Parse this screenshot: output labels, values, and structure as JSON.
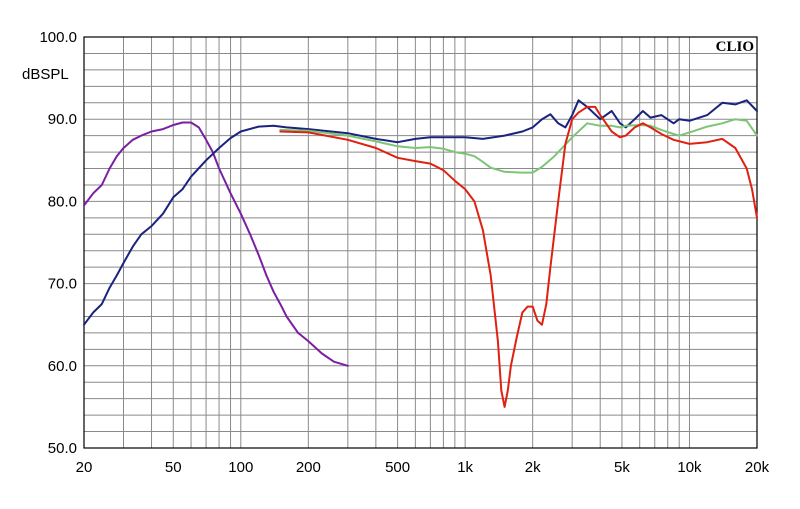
{
  "chart_data": {
    "type": "line",
    "brand": "CLIO",
    "ylabel": "dBSPL",
    "xscale": "log",
    "xlim": [
      20,
      20000
    ],
    "ylim": [
      50,
      100
    ],
    "grid": true,
    "yticks": [
      {
        "v": 100,
        "label": "100.0"
      },
      {
        "v": 90,
        "label": "90.0"
      },
      {
        "v": 80,
        "label": "80.0"
      },
      {
        "v": 70,
        "label": "70.0"
      },
      {
        "v": 60,
        "label": "60.0"
      },
      {
        "v": 50,
        "label": "50.0"
      }
    ],
    "xticks": [
      {
        "v": 20,
        "label": "20"
      },
      {
        "v": 50,
        "label": "50"
      },
      {
        "v": 100,
        "label": "100"
      },
      {
        "v": 200,
        "label": "200"
      },
      {
        "v": 500,
        "label": "500"
      },
      {
        "v": 1000,
        "label": "1k"
      },
      {
        "v": 2000,
        "label": "2k"
      },
      {
        "v": 5000,
        "label": "5k"
      },
      {
        "v": 10000,
        "label": "10k"
      },
      {
        "v": 20000,
        "label": "20k"
      }
    ],
    "series": [
      {
        "color": "#7b1fa2",
        "points": [
          [
            20,
            79.5
          ],
          [
            22,
            81
          ],
          [
            24,
            82
          ],
          [
            26,
            84
          ],
          [
            28,
            85.5
          ],
          [
            30,
            86.5
          ],
          [
            33,
            87.5
          ],
          [
            36,
            88
          ],
          [
            40,
            88.5
          ],
          [
            45,
            88.8
          ],
          [
            50,
            89.3
          ],
          [
            55,
            89.6
          ],
          [
            60,
            89.6
          ],
          [
            65,
            89
          ],
          [
            70,
            87.5
          ],
          [
            75,
            86
          ],
          [
            80,
            84
          ],
          [
            90,
            81
          ],
          [
            100,
            78.5
          ],
          [
            110,
            76
          ],
          [
            120,
            73.5
          ],
          [
            130,
            71
          ],
          [
            140,
            69
          ],
          [
            150,
            67.5
          ],
          [
            160,
            66
          ],
          [
            180,
            64
          ],
          [
            200,
            63
          ],
          [
            230,
            61.5
          ],
          [
            260,
            60.5
          ],
          [
            300,
            60
          ]
        ]
      },
      {
        "color": "#1a237e",
        "points": [
          [
            20,
            65
          ],
          [
            22,
            66.5
          ],
          [
            24,
            67.5
          ],
          [
            26,
            69.5
          ],
          [
            28,
            71
          ],
          [
            30,
            72.5
          ],
          [
            33,
            74.5
          ],
          [
            36,
            76
          ],
          [
            40,
            77
          ],
          [
            45,
            78.5
          ],
          [
            50,
            80.5
          ],
          [
            55,
            81.5
          ],
          [
            60,
            83
          ],
          [
            70,
            85
          ],
          [
            80,
            86.5
          ],
          [
            90,
            87.7
          ],
          [
            100,
            88.5
          ],
          [
            120,
            89.1
          ],
          [
            140,
            89.2
          ],
          [
            160,
            89
          ],
          [
            200,
            88.8
          ],
          [
            300,
            88.3
          ],
          [
            400,
            87.6
          ],
          [
            500,
            87.2
          ],
          [
            600,
            87.6
          ],
          [
            700,
            87.8
          ],
          [
            800,
            87.8
          ],
          [
            1000,
            87.8
          ],
          [
            1200,
            87.6
          ],
          [
            1500,
            88
          ],
          [
            1800,
            88.5
          ],
          [
            2000,
            89
          ],
          [
            2200,
            90
          ],
          [
            2400,
            90.6
          ],
          [
            2600,
            89.5
          ],
          [
            2800,
            89
          ],
          [
            3000,
            90.5
          ],
          [
            3200,
            92.3
          ],
          [
            3500,
            91.5
          ],
          [
            4000,
            90
          ],
          [
            4500,
            91
          ],
          [
            4900,
            89.5
          ],
          [
            5200,
            89
          ],
          [
            5700,
            90
          ],
          [
            6200,
            91
          ],
          [
            6700,
            90.2
          ],
          [
            7500,
            90.5
          ],
          [
            8500,
            89.5
          ],
          [
            9000,
            90
          ],
          [
            10000,
            89.8
          ],
          [
            12000,
            90.5
          ],
          [
            14000,
            92
          ],
          [
            16000,
            91.8
          ],
          [
            18000,
            92.3
          ],
          [
            20000,
            91
          ]
        ]
      },
      {
        "color": "#7cc576",
        "points": [
          [
            150,
            88.7
          ],
          [
            200,
            88.6
          ],
          [
            300,
            88
          ],
          [
            400,
            87.3
          ],
          [
            500,
            86.7
          ],
          [
            600,
            86.5
          ],
          [
            700,
            86.6
          ],
          [
            800,
            86.4
          ],
          [
            900,
            86
          ],
          [
            1000,
            85.8
          ],
          [
            1100,
            85.5
          ],
          [
            1200,
            84.8
          ],
          [
            1300,
            84.1
          ],
          [
            1500,
            83.6
          ],
          [
            1800,
            83.5
          ],
          [
            2000,
            83.5
          ],
          [
            2200,
            84.2
          ],
          [
            2500,
            85.5
          ],
          [
            3000,
            87.8
          ],
          [
            3500,
            89.5
          ],
          [
            4000,
            89.2
          ],
          [
            4500,
            89.2
          ],
          [
            4900,
            89
          ],
          [
            5200,
            89.2
          ],
          [
            6000,
            89.3
          ],
          [
            6700,
            89.2
          ],
          [
            7500,
            88.7
          ],
          [
            8500,
            88.2
          ],
          [
            9000,
            88
          ],
          [
            10000,
            88.4
          ],
          [
            12000,
            89.1
          ],
          [
            14000,
            89.5
          ],
          [
            16000,
            90
          ],
          [
            18000,
            89.8
          ],
          [
            20000,
            88
          ]
        ]
      },
      {
        "color": "#e02010",
        "points": [
          [
            150,
            88.5
          ],
          [
            200,
            88.4
          ],
          [
            300,
            87.5
          ],
          [
            400,
            86.5
          ],
          [
            500,
            85.3
          ],
          [
            600,
            84.9
          ],
          [
            700,
            84.6
          ],
          [
            800,
            83.8
          ],
          [
            900,
            82.5
          ],
          [
            1000,
            81.5
          ],
          [
            1100,
            80
          ],
          [
            1200,
            76.5
          ],
          [
            1300,
            71
          ],
          [
            1400,
            63
          ],
          [
            1450,
            57
          ],
          [
            1500,
            55
          ],
          [
            1550,
            57
          ],
          [
            1600,
            60
          ],
          [
            1700,
            63.5
          ],
          [
            1800,
            66.5
          ],
          [
            1900,
            67.2
          ],
          [
            2000,
            67.2
          ],
          [
            2100,
            65.5
          ],
          [
            2200,
            65
          ],
          [
            2300,
            67.5
          ],
          [
            2400,
            72
          ],
          [
            2600,
            80
          ],
          [
            2800,
            87
          ],
          [
            3000,
            90
          ],
          [
            3200,
            90.8
          ],
          [
            3500,
            91.5
          ],
          [
            3800,
            91.5
          ],
          [
            4000,
            90.5
          ],
          [
            4500,
            88.5
          ],
          [
            4900,
            87.8
          ],
          [
            5200,
            88
          ],
          [
            5700,
            89
          ],
          [
            6200,
            89.5
          ],
          [
            6700,
            89
          ],
          [
            7500,
            88.2
          ],
          [
            8500,
            87.5
          ],
          [
            10000,
            87
          ],
          [
            12000,
            87.2
          ],
          [
            14000,
            87.6
          ],
          [
            16000,
            86.5
          ],
          [
            18000,
            84
          ],
          [
            19000,
            81.5
          ],
          [
            20000,
            78
          ]
        ]
      }
    ]
  }
}
